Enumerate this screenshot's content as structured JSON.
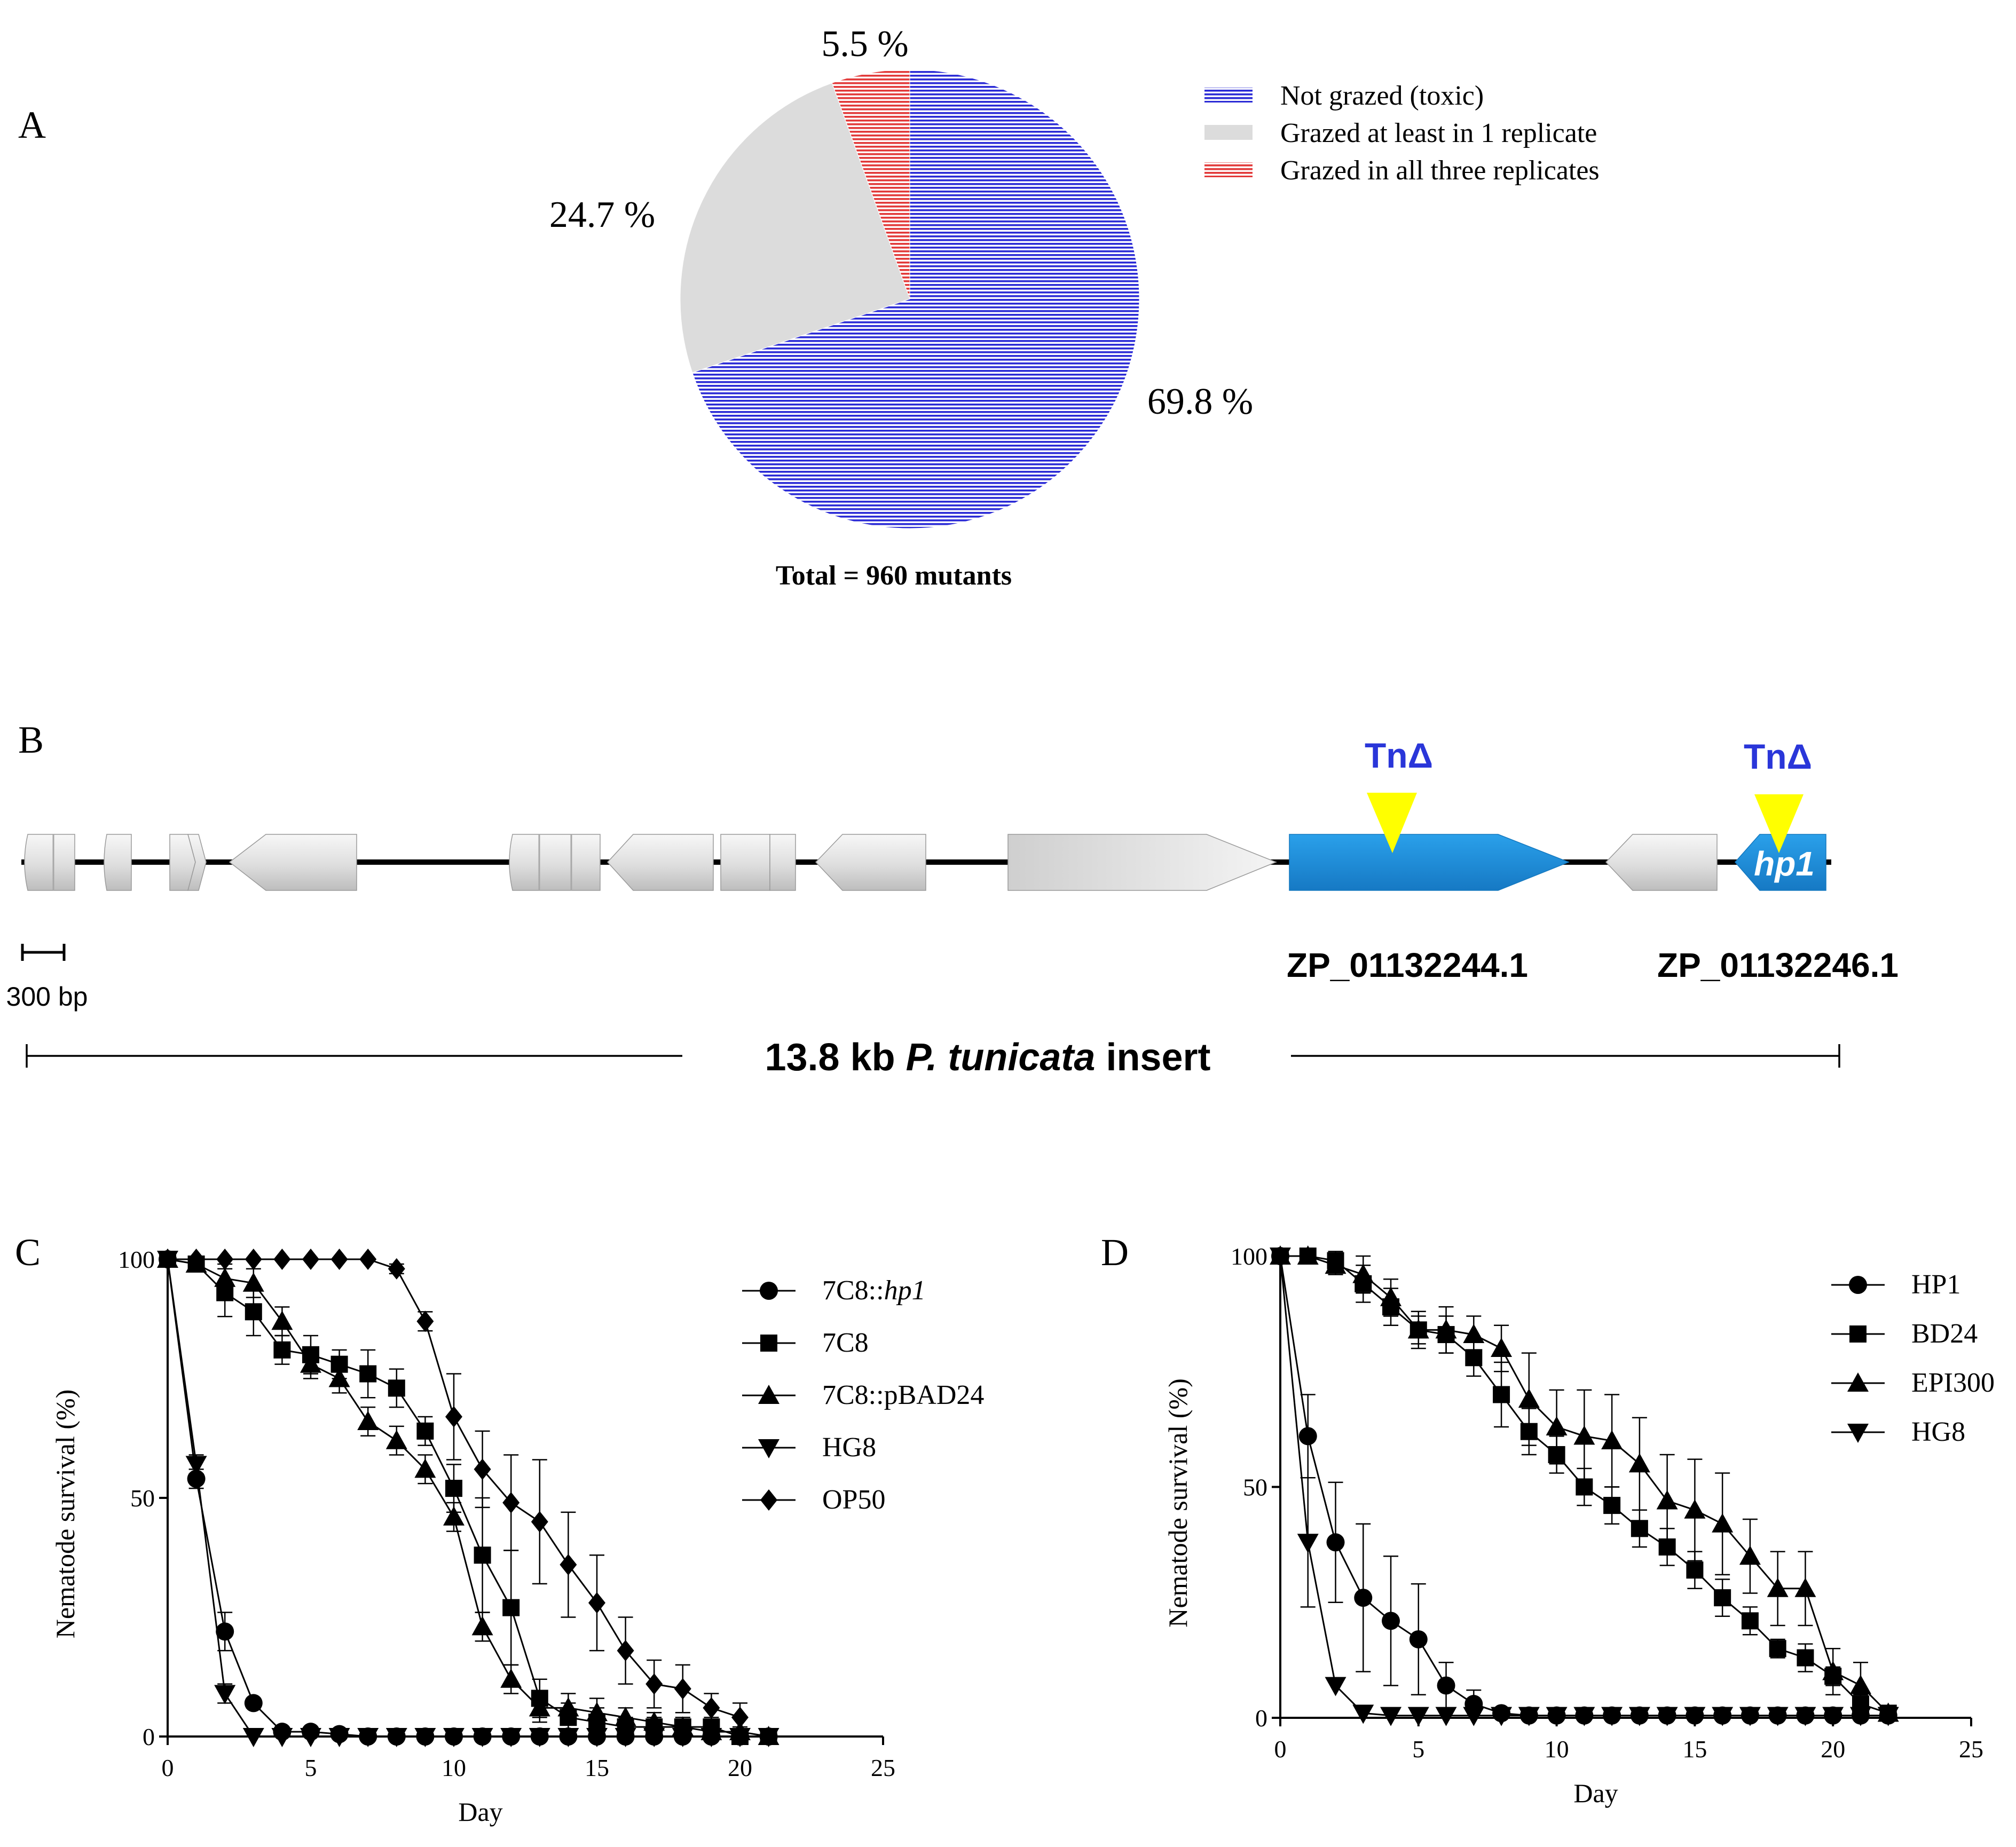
{
  "panels": {
    "a": {
      "letter": "A",
      "chart_data": {
        "type": "pie",
        "slices": [
          {
            "name": "Not grazed (toxic)",
            "value": 69.8,
            "label": "69.8 %",
            "color": "#2b2bd6",
            "pattern": "hlines"
          },
          {
            "name": "Grazed at least in 1 replicate",
            "value": 24.7,
            "label": "24.7 %",
            "color": "#dcdcdc",
            "pattern": "solid"
          },
          {
            "name": "Grazed in all three replicates",
            "value": 5.5,
            "label": "5.5 %",
            "color": "#e23a3a",
            "pattern": "hlines"
          }
        ],
        "start": "12 o'clock",
        "direction": "clockwise, order: Not grazed, Grazed at least in 1 replicate, Grazed in all three replicates",
        "caption": "Total = 960 mutants"
      }
    },
    "b": {
      "letter": "B",
      "tn_label": "TnΔ",
      "gene_names": {
        "g1": "ZP_01132244.1",
        "g2": "ZP_01132246.1",
        "hp1": "hp1"
      },
      "scale_label": "300 bp",
      "insert_label": {
        "prefix": "13.8 kb ",
        "species": "P. tunicata",
        "suffix": " insert"
      },
      "colors": {
        "highlight": "#1f8fd9",
        "marker": "#ffff00",
        "tn_text": "#2a36d9"
      }
    },
    "c": {
      "letter": "C",
      "chart_data": {
        "type": "line",
        "xlabel": "Day",
        "ylabel": "Nematode survival (%)",
        "xlim": [
          0,
          25
        ],
        "ylim": [
          0,
          100
        ],
        "xticks": [
          0,
          5,
          10,
          15,
          20,
          25
        ],
        "yticks": [
          0,
          50,
          100
        ],
        "series": [
          {
            "name": "7C8::",
            "name_italic": "hp1",
            "marker": "circle",
            "x": [
              0,
              1,
              2,
              3,
              4,
              5,
              6,
              7,
              8,
              9,
              10,
              11,
              12,
              13,
              14,
              15,
              16,
              17,
              18,
              19,
              20,
              21
            ],
            "y": [
              100,
              54,
              22,
              7,
              1,
              1,
              0.5,
              0,
              0,
              0,
              0,
              0,
              0,
              0,
              0,
              0,
              0,
              0,
              0,
              0,
              0,
              0
            ],
            "err": [
              0,
              2,
              4,
              1,
              0,
              0,
              0,
              0,
              0,
              0,
              0,
              0,
              0,
              0,
              0,
              0,
              0,
              0,
              0,
              0,
              0,
              0
            ]
          },
          {
            "name": "7C8",
            "marker": "square",
            "x": [
              0,
              1,
              2,
              3,
              4,
              5,
              6,
              7,
              8,
              9,
              10,
              11,
              12,
              13,
              14,
              15,
              16,
              17,
              18,
              19,
              20,
              21
            ],
            "y": [
              100,
              99,
              93,
              89,
              81,
              80,
              78,
              76,
              73,
              64,
              52,
              38,
              27,
              8,
              4,
              3,
              2,
              2,
              2,
              2,
              0,
              0
            ],
            "err": [
              0,
              1,
              5,
              5,
              3,
              4,
              3,
              5,
              4,
              3,
              5,
              12,
              12,
              4,
              3,
              3,
              2,
              2,
              2,
              2,
              0,
              0
            ]
          },
          {
            "name": "7C8::pBAD24",
            "marker": "triangle-up",
            "x": [
              0,
              1,
              2,
              3,
              4,
              5,
              6,
              7,
              8,
              9,
              10,
              11,
              12,
              13,
              14,
              15,
              16,
              17,
              18,
              19,
              20,
              21
            ],
            "y": [
              100,
              99,
              96,
              95,
              87,
              78,
              75,
              66,
              62,
              56,
              46,
              23,
              12,
              6,
              6,
              5,
              4,
              3,
              2,
              1,
              1,
              0
            ],
            "err": [
              0,
              1,
              3,
              3,
              3,
              3,
              3,
              3,
              3,
              3,
              3,
              3,
              3,
              3,
              3,
              3,
              2,
              2,
              2,
              1,
              1,
              0
            ]
          },
          {
            "name": "HG8",
            "marker": "triangle-down",
            "x": [
              0,
              1,
              2,
              3,
              4,
              5,
              6,
              7,
              8,
              9,
              10,
              11,
              12,
              13,
              14,
              15,
              16,
              17,
              18,
              19,
              20,
              21
            ],
            "y": [
              100,
              57,
              9,
              0,
              0,
              0,
              0,
              0,
              0,
              0,
              0,
              0,
              0,
              0,
              0,
              0,
              0,
              0,
              0,
              0,
              0,
              0
            ],
            "err": [
              0,
              2,
              2,
              0,
              0,
              0,
              0,
              0,
              0,
              0,
              0,
              0,
              0,
              0,
              0,
              0,
              0,
              0,
              0,
              0,
              0,
              0
            ]
          },
          {
            "name": "OP50",
            "marker": "diamond",
            "x": [
              0,
              1,
              2,
              3,
              4,
              5,
              6,
              7,
              8,
              9,
              10,
              11,
              12,
              13,
              14,
              15,
              16,
              17,
              18,
              19,
              20
            ],
            "y": [
              100,
              100,
              100,
              100,
              100,
              100,
              100,
              100,
              98,
              87,
              67,
              56,
              49,
              45,
              36,
              28,
              18,
              11,
              10,
              6,
              4
            ],
            "err": [
              0,
              0,
              0,
              0,
              0,
              0,
              0,
              0,
              1,
              2,
              9,
              8,
              10,
              13,
              11,
              10,
              7,
              5,
              5,
              3,
              3
            ]
          }
        ]
      }
    },
    "d": {
      "letter": "D",
      "chart_data": {
        "type": "line",
        "xlabel": "Day",
        "ylabel": "Nematode survival (%)",
        "xlim": [
          0,
          25
        ],
        "ylim": [
          0,
          100
        ],
        "xticks": [
          0,
          5,
          10,
          15,
          20,
          25
        ],
        "yticks": [
          0,
          50,
          100
        ],
        "series": [
          {
            "name": "HP1",
            "marker": "circle",
            "x": [
              0,
              1,
              2,
              3,
              4,
              5,
              6,
              7,
              8,
              9,
              10,
              11,
              12,
              13,
              14,
              15,
              16,
              17,
              18,
              19,
              20,
              21,
              22
            ],
            "y": [
              100,
              61,
              38,
              26,
              21,
              17,
              7,
              3,
              1,
              0.5,
              0.5,
              0.5,
              0.5,
              0.5,
              0.5,
              0.5,
              0.5,
              0.5,
              0.5,
              0.5,
              0.5,
              0.5,
              0.5
            ],
            "err": [
              0,
              9,
              13,
              16,
              14,
              12,
              5,
              3,
              1,
              0,
              0,
              0,
              0,
              0,
              0,
              0,
              0,
              0,
              0,
              0,
              0,
              0,
              0
            ]
          },
          {
            "name": "BD24",
            "marker": "square",
            "x": [
              0,
              1,
              2,
              3,
              4,
              5,
              6,
              7,
              8,
              9,
              10,
              11,
              12,
              13,
              14,
              15,
              16,
              17,
              18,
              19,
              20,
              21,
              22
            ],
            "y": [
              100,
              100,
              99,
              94,
              89,
              84,
              83,
              78,
              70,
              62,
              57,
              50,
              46,
              41,
              37,
              32,
              26,
              21,
              15,
              13,
              9,
              3,
              1
            ],
            "err": [
              0,
              0,
              2,
              4,
              4,
              3,
              4,
              4,
              7,
              5,
              4,
              4,
              4,
              4,
              4,
              4,
              4,
              3,
              2,
              3,
              2,
              2,
              0
            ]
          },
          {
            "name": "EPI300",
            "marker": "triangle-up",
            "x": [
              0,
              1,
              2,
              3,
              4,
              5,
              6,
              7,
              8,
              9,
              10,
              11,
              12,
              13,
              14,
              15,
              16,
              17,
              18,
              19,
              20,
              21,
              22
            ],
            "y": [
              100,
              100,
              98,
              96,
              91,
              84,
              84,
              83,
              80,
              69,
              63,
              61,
              60,
              55,
              47,
              45,
              42,
              35,
              28,
              28,
              10,
              7,
              1
            ],
            "err": [
              0,
              0,
              2,
              4,
              4,
              4,
              5,
              4,
              5,
              10,
              8,
              10,
              10,
              10,
              10,
              11,
              11,
              8,
              8,
              8,
              5,
              5,
              0
            ]
          },
          {
            "name": "HG8",
            "marker": "triangle-down",
            "x": [
              0,
              1,
              2,
              3,
              4,
              5,
              6,
              7,
              8,
              9,
              10,
              11,
              12,
              13,
              14,
              15,
              16,
              17,
              18,
              19,
              20,
              21,
              22
            ],
            "y": [
              100,
              38,
              7,
              1,
              0.5,
              0.5,
              0.5,
              0.5,
              0.5,
              0.5,
              0.5,
              0.5,
              0.5,
              0.5,
              0.5,
              0.5,
              0.5,
              0.5,
              0.5,
              0.5,
              0.5,
              0.5,
              0.5
            ],
            "err": [
              0,
              14,
              0,
              0,
              0,
              0,
              0,
              0,
              0,
              0,
              0,
              0,
              0,
              0,
              0,
              0,
              0,
              0,
              0,
              0,
              0,
              0,
              0
            ]
          }
        ]
      }
    }
  }
}
